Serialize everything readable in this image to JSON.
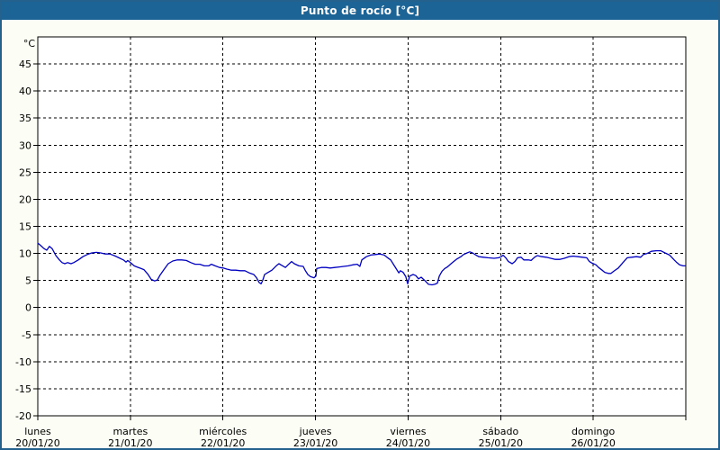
{
  "window": {
    "title": "Punto de rocío [°C]"
  },
  "colors": {
    "titlebar_bg": "#1d6496",
    "frame_border": "#24618c",
    "content_bg": "#fcfdf4",
    "plot_bg": "#ffffff",
    "grid": "#000000",
    "axis": "#000000",
    "label_text": "#000000",
    "line": "#0000c3",
    "title_text": "#ffffff"
  },
  "chart_data": {
    "type": "line",
    "title": "Punto de rocío [°C]",
    "unit_label": "°C",
    "ylabel": "°C",
    "xlabel": "",
    "ylim": [
      -20,
      50
    ],
    "yticks": [
      45,
      40,
      35,
      30,
      25,
      20,
      15,
      10,
      5,
      0,
      -5,
      -10,
      -15,
      -20
    ],
    "x_range_hours": [
      0,
      168
    ],
    "grid": "dashed",
    "legend": "none",
    "days": [
      {
        "name": "lunes",
        "date": "20/01/20"
      },
      {
        "name": "martes",
        "date": "21/01/20"
      },
      {
        "name": "miércoles",
        "date": "22/01/20"
      },
      {
        "name": "jueves",
        "date": "23/01/20"
      },
      {
        "name": "viernes",
        "date": "24/01/20"
      },
      {
        "name": "sábado",
        "date": "25/01/20"
      },
      {
        "name": "domingo",
        "date": "26/01/20"
      }
    ],
    "series": [
      {
        "name": "Punto de rocío",
        "color": "#0000c3",
        "points": [
          [
            0,
            11.9
          ],
          [
            0.7,
            11.5
          ],
          [
            1.6,
            10.9
          ],
          [
            2.3,
            10.6
          ],
          [
            3,
            11.3
          ],
          [
            3.7,
            10.9
          ],
          [
            4.7,
            9.6
          ],
          [
            5.6,
            8.8
          ],
          [
            6.3,
            8.3
          ],
          [
            7,
            8.1
          ],
          [
            7.7,
            8.3
          ],
          [
            8.6,
            8.1
          ],
          [
            9.3,
            8.3
          ],
          [
            10.5,
            8.8
          ],
          [
            11.7,
            9.4
          ],
          [
            12.8,
            9.8
          ],
          [
            14,
            10.1
          ],
          [
            15.2,
            10.2
          ],
          [
            16.3,
            10.1
          ],
          [
            17.5,
            9.9
          ],
          [
            18.7,
            9.9
          ],
          [
            19.8,
            9.6
          ],
          [
            21,
            9.2
          ],
          [
            22.2,
            8.8
          ],
          [
            22.9,
            8.4
          ],
          [
            23.3,
            8.7
          ],
          [
            24,
            8.3
          ],
          [
            25,
            7.7
          ],
          [
            25.7,
            7.5
          ],
          [
            26.8,
            7.2
          ],
          [
            27.5,
            7
          ],
          [
            28.5,
            6.2
          ],
          [
            29.4,
            5.2
          ],
          [
            30.3,
            4.9
          ],
          [
            31,
            5.1
          ],
          [
            31.7,
            6
          ],
          [
            32.7,
            7
          ],
          [
            33.8,
            8.1
          ],
          [
            35,
            8.6
          ],
          [
            36.2,
            8.8
          ],
          [
            37.3,
            8.8
          ],
          [
            38.5,
            8.7
          ],
          [
            39.7,
            8.3
          ],
          [
            40.8,
            8
          ],
          [
            42,
            8
          ],
          [
            43.2,
            7.7
          ],
          [
            44.3,
            7.7
          ],
          [
            45,
            8
          ],
          [
            46,
            7.7
          ],
          [
            47.1,
            7.4
          ],
          [
            48.1,
            7.3
          ],
          [
            49,
            7.1
          ],
          [
            50.2,
            6.9
          ],
          [
            51.3,
            6.9
          ],
          [
            52.5,
            6.8
          ],
          [
            53.7,
            6.8
          ],
          [
            54.8,
            6.4
          ],
          [
            56,
            6.1
          ],
          [
            56.7,
            5.5
          ],
          [
            57.4,
            4.6
          ],
          [
            57.9,
            4.4
          ],
          [
            58.3,
            5
          ],
          [
            58.8,
            6.1
          ],
          [
            59.5,
            6.4
          ],
          [
            60.7,
            6.9
          ],
          [
            61.8,
            7.7
          ],
          [
            62.5,
            8.1
          ],
          [
            63.5,
            7.7
          ],
          [
            64.2,
            7.4
          ],
          [
            64.9,
            7.9
          ],
          [
            65.8,
            8.5
          ],
          [
            66.5,
            8.1
          ],
          [
            67.7,
            7.7
          ],
          [
            68.8,
            7.6
          ],
          [
            69.3,
            6.9
          ],
          [
            70,
            6.1
          ],
          [
            70.7,
            5.7
          ],
          [
            71.6,
            5.5
          ],
          [
            72.1,
            5.8
          ],
          [
            72.3,
            7.2
          ],
          [
            73.5,
            7.4
          ],
          [
            74.7,
            7.4
          ],
          [
            75.8,
            7.3
          ],
          [
            77,
            7.4
          ],
          [
            78.2,
            7.5
          ],
          [
            79.3,
            7.6
          ],
          [
            80.5,
            7.7
          ],
          [
            81.7,
            7.9
          ],
          [
            82.8,
            8
          ],
          [
            83.5,
            7.6
          ],
          [
            84,
            8.8
          ],
          [
            85.2,
            9.4
          ],
          [
            86.3,
            9.7
          ],
          [
            87.5,
            9.8
          ],
          [
            88.7,
            9.9
          ],
          [
            89.8,
            9.7
          ],
          [
            90.5,
            9.3
          ],
          [
            91.5,
            8.8
          ],
          [
            92.2,
            8
          ],
          [
            92.9,
            7.2
          ],
          [
            93.6,
            6.4
          ],
          [
            94,
            6.8
          ],
          [
            94.7,
            6.5
          ],
          [
            95.4,
            5.7
          ],
          [
            95.9,
            4.4
          ],
          [
            96.4,
            5.8
          ],
          [
            97.3,
            6.1
          ],
          [
            98,
            5.9
          ],
          [
            98.7,
            5.3
          ],
          [
            99.4,
            5.6
          ],
          [
            100.3,
            5
          ],
          [
            101.3,
            4.3
          ],
          [
            102.2,
            4.2
          ],
          [
            102.9,
            4.3
          ],
          [
            103.6,
            4.5
          ],
          [
            104.1,
            5.8
          ],
          [
            104.8,
            6.7
          ],
          [
            105.5,
            7.2
          ],
          [
            106.2,
            7.5
          ],
          [
            107.3,
            8.2
          ],
          [
            108.5,
            8.9
          ],
          [
            109.7,
            9.4
          ],
          [
            110.4,
            9.8
          ],
          [
            111.3,
            10.1
          ],
          [
            112,
            10.3
          ],
          [
            112.7,
            10.1
          ],
          [
            113.6,
            9.7
          ],
          [
            114.3,
            9.4
          ],
          [
            115.5,
            9.3
          ],
          [
            116.7,
            9.2
          ],
          [
            118.3,
            9.1
          ],
          [
            119.5,
            9.2
          ],
          [
            120.2,
            9.4
          ],
          [
            120.6,
            9.7
          ],
          [
            121.3,
            9.2
          ],
          [
            122,
            8.5
          ],
          [
            123,
            8.1
          ],
          [
            123.7,
            8.5
          ],
          [
            124.4,
            9.2
          ],
          [
            125.3,
            9.3
          ],
          [
            126,
            8.8
          ],
          [
            127.2,
            8.8
          ],
          [
            127.9,
            8.7
          ],
          [
            128.8,
            9.3
          ],
          [
            129.5,
            9.6
          ],
          [
            130.7,
            9.4
          ],
          [
            131.8,
            9.3
          ],
          [
            133,
            9.1
          ],
          [
            134.2,
            8.9
          ],
          [
            135.3,
            8.9
          ],
          [
            136.5,
            9.1
          ],
          [
            137.7,
            9.4
          ],
          [
            138.8,
            9.5
          ],
          [
            140,
            9.4
          ],
          [
            141.2,
            9.3
          ],
          [
            142.3,
            9.2
          ],
          [
            143,
            8.5
          ],
          [
            143.7,
            8.2
          ],
          [
            144.7,
            7.9
          ],
          [
            145.4,
            7.4
          ],
          [
            146.3,
            6.9
          ],
          [
            147,
            6.5
          ],
          [
            147.9,
            6.3
          ],
          [
            148.6,
            6.3
          ],
          [
            149.3,
            6.7
          ],
          [
            150.5,
            7.3
          ],
          [
            151.7,
            8.3
          ],
          [
            152.8,
            9.2
          ],
          [
            154,
            9.3
          ],
          [
            155.2,
            9.4
          ],
          [
            156.3,
            9.3
          ],
          [
            157,
            9.8
          ],
          [
            158,
            10
          ],
          [
            159.1,
            10.4
          ],
          [
            160.3,
            10.5
          ],
          [
            161.5,
            10.5
          ],
          [
            162.6,
            10.1
          ],
          [
            163.8,
            9.7
          ],
          [
            165,
            8.8
          ],
          [
            165.7,
            8.3
          ],
          [
            166.4,
            7.9
          ],
          [
            167.3,
            7.7
          ],
          [
            168,
            7.7
          ]
        ]
      }
    ]
  }
}
